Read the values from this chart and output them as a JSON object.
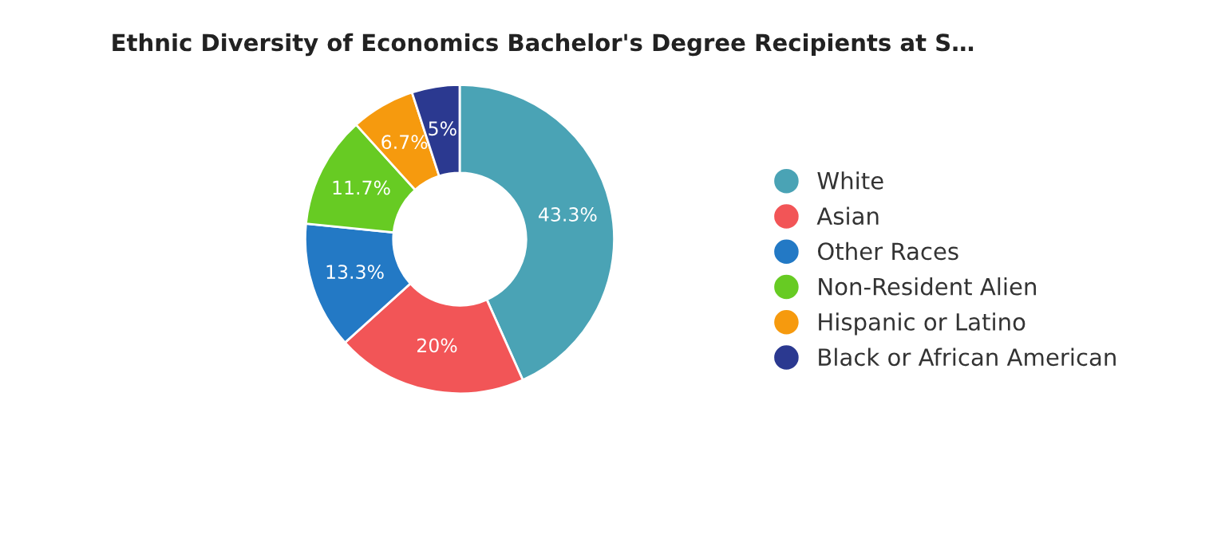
{
  "chart_data": {
    "type": "donut",
    "title": "Ethnic Diversity of Economics Bachelor's Degree Recipients at S…",
    "categories": [
      "White",
      "Asian",
      "Other Races",
      "Non-Resident Alien",
      "Hispanic or Latino",
      "Black or African American"
    ],
    "values": [
      43.3,
      20,
      13.3,
      11.7,
      6.7,
      5
    ],
    "value_labels": [
      "43.3%",
      "20%",
      "13.3%",
      "11.7%",
      "6.7%",
      "5%"
    ],
    "colors": [
      "#4aa3b5",
      "#f25557",
      "#2379c5",
      "#67cb23",
      "#f69a0e",
      "#2b3990"
    ],
    "legend": "right"
  }
}
